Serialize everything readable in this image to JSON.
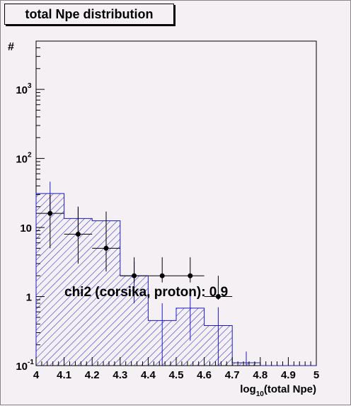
{
  "chart_data": {
    "type": "bar",
    "title": "total Npe distribution",
    "xlabel": "log10(total Npe)",
    "ylabel": "#",
    "xlim": [
      4.0,
      5.0
    ],
    "ylim": [
      0.1,
      5000
    ],
    "yscale": "log",
    "grid": false,
    "x_ticks": [
      "4",
      "4.1",
      "4.2",
      "4.3",
      "4.4",
      "4.5",
      "4.6",
      "4.7",
      "4.8",
      "4.9",
      "5"
    ],
    "y_ticks": [
      {
        "value": 0.1,
        "base": "10",
        "exp": "-1"
      },
      {
        "value": 1,
        "base": "1",
        "exp": ""
      },
      {
        "value": 10,
        "base": "10",
        "exp": ""
      },
      {
        "value": 100,
        "base": "10",
        "exp": "2"
      },
      {
        "value": 1000,
        "base": "10",
        "exp": "3"
      }
    ],
    "bin_edges": [
      4.0,
      4.1,
      4.2,
      4.3,
      4.4,
      4.5,
      4.6,
      4.7,
      4.8,
      4.9,
      5.0
    ],
    "series": [
      {
        "kind": "histogram",
        "color": "#1a1acc",
        "values": [
          31,
          13.5,
          12.5,
          2.0,
          0.45,
          0.68,
          0.38,
          0.11,
          0,
          0
        ],
        "errors": [
          15,
          6.5,
          4.5,
          1.2,
          0.35,
          0.45,
          0.32,
          0.05,
          0,
          0
        ]
      },
      {
        "kind": "points",
        "color": "#000000",
        "x": [
          4.05,
          4.15,
          4.25,
          4.35,
          4.45,
          4.55,
          4.65
        ],
        "values": [
          16,
          8,
          5,
          2,
          2,
          2,
          1
        ],
        "err_low": [
          5,
          3,
          2.3,
          1.6,
          1.6,
          1.6,
          0.9
        ],
        "err_high": [
          30,
          20,
          17,
          3.7,
          3.7,
          3.7,
          2.0
        ]
      }
    ],
    "annotation": "chi2 (corsika, proton): 0.9"
  },
  "colors": {
    "background": "#f4f0f4",
    "histogram": "#1a1acc",
    "points": "#000000"
  }
}
